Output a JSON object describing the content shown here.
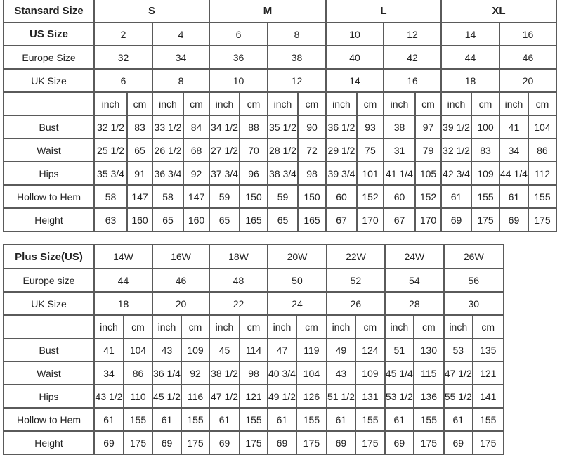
{
  "standard": {
    "header": {
      "label": "Stansard Size",
      "groups": [
        "S",
        "M",
        "L",
        "XL"
      ]
    },
    "us_size": {
      "label": "US Size",
      "values": [
        "2",
        "4",
        "6",
        "8",
        "10",
        "12",
        "14",
        "16"
      ]
    },
    "europe_size": {
      "label": "Europe Size",
      "values": [
        "32",
        "34",
        "36",
        "38",
        "40",
        "42",
        "44",
        "46"
      ]
    },
    "uk_size": {
      "label": "UK Size",
      "values": [
        "6",
        "8",
        "10",
        "12",
        "14",
        "16",
        "18",
        "20"
      ]
    },
    "units": [
      "inch",
      "cm"
    ],
    "measurements": [
      {
        "label": "Bust",
        "values": [
          "32 1/2",
          "83",
          "33 1/2",
          "84",
          "34 1/2",
          "88",
          "35 1/2",
          "90",
          "36 1/2",
          "93",
          "38",
          "97",
          "39 1/2",
          "100",
          "41",
          "104"
        ]
      },
      {
        "label": "Waist",
        "values": [
          "25 1/2",
          "65",
          "26 1/2",
          "68",
          "27 1/2",
          "70",
          "28 1/2",
          "72",
          "29 1/2",
          "75",
          "31",
          "79",
          "32 1/2",
          "83",
          "34",
          "86"
        ]
      },
      {
        "label": "Hips",
        "values": [
          "35 3/4",
          "91",
          "36 3/4",
          "92",
          "37 3/4",
          "96",
          "38 3/4",
          "98",
          "39 3/4",
          "101",
          "41 1/4",
          "105",
          "42 3/4",
          "109",
          "44 1/4",
          "112"
        ]
      },
      {
        "label": "Hollow to Hem",
        "values": [
          "58",
          "147",
          "58",
          "147",
          "59",
          "150",
          "59",
          "150",
          "60",
          "152",
          "60",
          "152",
          "61",
          "155",
          "61",
          "155"
        ]
      },
      {
        "label": "Height",
        "values": [
          "63",
          "160",
          "65",
          "160",
          "65",
          "165",
          "65",
          "165",
          "67",
          "170",
          "67",
          "170",
          "69",
          "175",
          "69",
          "175"
        ]
      }
    ]
  },
  "plus": {
    "header": {
      "label": "Plus Size(US)",
      "values": [
        "14W",
        "16W",
        "18W",
        "20W",
        "22W",
        "24W",
        "26W"
      ]
    },
    "europe_size": {
      "label": "Europe size",
      "values": [
        "44",
        "46",
        "48",
        "50",
        "52",
        "54",
        "56"
      ]
    },
    "uk_size": {
      "label": "UK Size",
      "values": [
        "18",
        "20",
        "22",
        "24",
        "26",
        "28",
        "30"
      ]
    },
    "units": [
      "inch",
      "cm"
    ],
    "measurements": [
      {
        "label": "Bust",
        "values": [
          "41",
          "104",
          "43",
          "109",
          "45",
          "114",
          "47",
          "119",
          "49",
          "124",
          "51",
          "130",
          "53",
          "135"
        ]
      },
      {
        "label": "Waist",
        "values": [
          "34",
          "86",
          "36 1/4",
          "92",
          "38 1/2",
          "98",
          "40 3/4",
          "104",
          "43",
          "109",
          "45 1/4",
          "115",
          "47 1/2",
          "121"
        ]
      },
      {
        "label": "Hips",
        "values": [
          "43 1/2",
          "110",
          "45 1/2",
          "116",
          "47 1/2",
          "121",
          "49 1/2",
          "126",
          "51 1/2",
          "131",
          "53 1/2",
          "136",
          "55 1/2",
          "141"
        ]
      },
      {
        "label": "Hollow to Hem",
        "values": [
          "61",
          "155",
          "61",
          "155",
          "61",
          "155",
          "61",
          "155",
          "61",
          "155",
          "61",
          "155",
          "61",
          "155"
        ]
      },
      {
        "label": "Height",
        "values": [
          "69",
          "175",
          "69",
          "175",
          "69",
          "175",
          "69",
          "175",
          "69",
          "175",
          "69",
          "175",
          "69",
          "175"
        ]
      }
    ]
  }
}
